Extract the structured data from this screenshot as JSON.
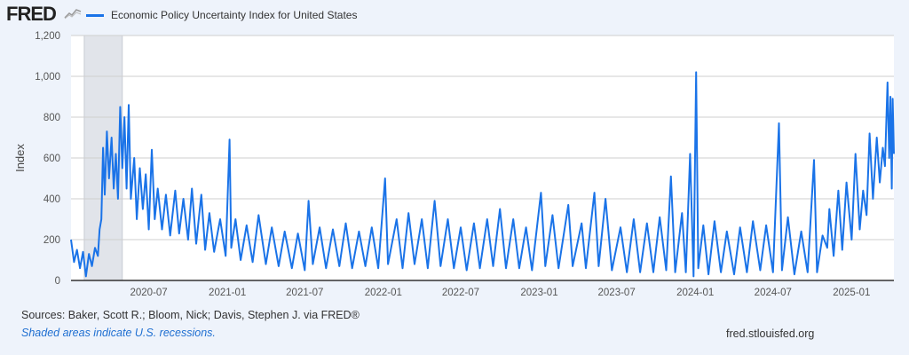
{
  "header": {
    "logo": "FRED",
    "legend_label": "Economic Policy Uncertainty Index for United States",
    "series_color": "#1a73e8"
  },
  "footer": {
    "sources": "Sources: Baker, Scott R.; Bloom, Nick; Davis, Stephen J. via FRED®",
    "note": "Shaded areas indicate U.S. recessions.",
    "site": "fred.stlouisfed.org"
  },
  "chart_data": {
    "type": "line",
    "title": "Economic Policy Uncertainty Index for United States",
    "xlabel": "",
    "ylabel": "Index",
    "ylim": [
      0,
      1200
    ],
    "xlim": [
      "2020-01-01",
      "2025-04-10"
    ],
    "yticks": [
      {
        "v": 0,
        "label": "0"
      },
      {
        "v": 200,
        "label": "200"
      },
      {
        "v": 400,
        "label": "400"
      },
      {
        "v": 600,
        "label": "600"
      },
      {
        "v": 800,
        "label": "800"
      },
      {
        "v": 1000,
        "label": "1,000"
      },
      {
        "v": 1200,
        "label": "1,200"
      }
    ],
    "xticks": [
      "2020-07",
      "2021-01",
      "2021-07",
      "2022-01",
      "2022-07",
      "2023-01",
      "2023-07",
      "2024-01",
      "2024-07",
      "2025-01"
    ],
    "recessions": [
      [
        "2020-02-01",
        "2020-04-30"
      ]
    ],
    "grid": true,
    "legend": "top-left",
    "series": [
      {
        "name": "Economic Policy Uncertainty Index for United States",
        "points": [
          [
            "2020-01-01",
            200
          ],
          [
            "2020-01-08",
            90
          ],
          [
            "2020-01-15",
            150
          ],
          [
            "2020-01-22",
            60
          ],
          [
            "2020-01-29",
            140
          ],
          [
            "2020-02-05",
            20
          ],
          [
            "2020-02-12",
            130
          ],
          [
            "2020-02-19",
            70
          ],
          [
            "2020-02-26",
            160
          ],
          [
            "2020-03-04",
            120
          ],
          [
            "2020-03-08",
            250
          ],
          [
            "2020-03-12",
            300
          ],
          [
            "2020-03-16",
            650
          ],
          [
            "2020-03-20",
            420
          ],
          [
            "2020-03-25",
            730
          ],
          [
            "2020-03-30",
            500
          ],
          [
            "2020-04-05",
            700
          ],
          [
            "2020-04-10",
            450
          ],
          [
            "2020-04-15",
            620
          ],
          [
            "2020-04-20",
            400
          ],
          [
            "2020-04-25",
            850
          ],
          [
            "2020-04-30",
            550
          ],
          [
            "2020-05-05",
            800
          ],
          [
            "2020-05-10",
            450
          ],
          [
            "2020-05-15",
            860
          ],
          [
            "2020-05-20",
            400
          ],
          [
            "2020-05-28",
            600
          ],
          [
            "2020-06-03",
            300
          ],
          [
            "2020-06-10",
            550
          ],
          [
            "2020-06-17",
            350
          ],
          [
            "2020-06-24",
            520
          ],
          [
            "2020-07-01",
            250
          ],
          [
            "2020-07-08",
            640
          ],
          [
            "2020-07-15",
            300
          ],
          [
            "2020-07-22",
            450
          ],
          [
            "2020-08-01",
            250
          ],
          [
            "2020-08-10",
            420
          ],
          [
            "2020-08-20",
            220
          ],
          [
            "2020-09-01",
            440
          ],
          [
            "2020-09-10",
            230
          ],
          [
            "2020-09-20",
            400
          ],
          [
            "2020-10-01",
            200
          ],
          [
            "2020-10-10",
            450
          ],
          [
            "2020-10-20",
            180
          ],
          [
            "2020-11-01",
            420
          ],
          [
            "2020-11-10",
            150
          ],
          [
            "2020-11-20",
            330
          ],
          [
            "2020-12-01",
            140
          ],
          [
            "2020-12-15",
            300
          ],
          [
            "2020-12-28",
            120
          ],
          [
            "2021-01-06",
            690
          ],
          [
            "2021-01-10",
            160
          ],
          [
            "2021-01-20",
            300
          ],
          [
            "2021-02-01",
            100
          ],
          [
            "2021-02-15",
            270
          ],
          [
            "2021-03-01",
            90
          ],
          [
            "2021-03-15",
            320
          ],
          [
            "2021-04-01",
            80
          ],
          [
            "2021-04-15",
            260
          ],
          [
            "2021-05-01",
            70
          ],
          [
            "2021-05-15",
            240
          ],
          [
            "2021-06-01",
            60
          ],
          [
            "2021-06-15",
            230
          ],
          [
            "2021-07-01",
            50
          ],
          [
            "2021-07-10",
            390
          ],
          [
            "2021-07-20",
            80
          ],
          [
            "2021-08-05",
            260
          ],
          [
            "2021-08-20",
            60
          ],
          [
            "2021-09-05",
            250
          ],
          [
            "2021-09-20",
            70
          ],
          [
            "2021-10-05",
            280
          ],
          [
            "2021-10-20",
            60
          ],
          [
            "2021-11-05",
            240
          ],
          [
            "2021-11-20",
            70
          ],
          [
            "2021-12-05",
            260
          ],
          [
            "2021-12-20",
            60
          ],
          [
            "2022-01-05",
            500
          ],
          [
            "2022-01-12",
            80
          ],
          [
            "2022-02-01",
            300
          ],
          [
            "2022-02-15",
            60
          ],
          [
            "2022-03-01",
            330
          ],
          [
            "2022-03-15",
            80
          ],
          [
            "2022-04-01",
            300
          ],
          [
            "2022-04-15",
            60
          ],
          [
            "2022-05-01",
            390
          ],
          [
            "2022-05-15",
            70
          ],
          [
            "2022-06-01",
            300
          ],
          [
            "2022-06-15",
            60
          ],
          [
            "2022-07-01",
            260
          ],
          [
            "2022-07-15",
            50
          ],
          [
            "2022-08-01",
            280
          ],
          [
            "2022-08-15",
            60
          ],
          [
            "2022-09-01",
            300
          ],
          [
            "2022-09-15",
            70
          ],
          [
            "2022-10-01",
            350
          ],
          [
            "2022-10-15",
            60
          ],
          [
            "2022-11-01",
            300
          ],
          [
            "2022-11-15",
            60
          ],
          [
            "2022-12-01",
            260
          ],
          [
            "2022-12-15",
            50
          ],
          [
            "2023-01-05",
            430
          ],
          [
            "2023-01-15",
            70
          ],
          [
            "2023-02-01",
            320
          ],
          [
            "2023-02-15",
            60
          ],
          [
            "2023-03-10",
            370
          ],
          [
            "2023-03-20",
            70
          ],
          [
            "2023-04-10",
            280
          ],
          [
            "2023-04-20",
            60
          ],
          [
            "2023-05-10",
            430
          ],
          [
            "2023-05-20",
            70
          ],
          [
            "2023-06-05",
            400
          ],
          [
            "2023-06-20",
            50
          ],
          [
            "2023-07-10",
            260
          ],
          [
            "2023-07-25",
            40
          ],
          [
            "2023-08-10",
            300
          ],
          [
            "2023-08-25",
            40
          ],
          [
            "2023-09-10",
            280
          ],
          [
            "2023-09-25",
            40
          ],
          [
            "2023-10-10",
            310
          ],
          [
            "2023-10-25",
            50
          ],
          [
            "2023-11-05",
            510
          ],
          [
            "2023-11-15",
            40
          ],
          [
            "2023-12-01",
            330
          ],
          [
            "2023-12-10",
            40
          ],
          [
            "2023-12-20",
            620
          ],
          [
            "2023-12-28",
            20
          ],
          [
            "2024-01-03",
            1020
          ],
          [
            "2024-01-08",
            60
          ],
          [
            "2024-01-20",
            270
          ],
          [
            "2024-02-01",
            30
          ],
          [
            "2024-02-15",
            290
          ],
          [
            "2024-03-01",
            40
          ],
          [
            "2024-03-15",
            240
          ],
          [
            "2024-04-01",
            30
          ],
          [
            "2024-04-15",
            260
          ],
          [
            "2024-05-01",
            40
          ],
          [
            "2024-05-15",
            290
          ],
          [
            "2024-06-01",
            50
          ],
          [
            "2024-06-15",
            270
          ],
          [
            "2024-07-01",
            40
          ],
          [
            "2024-07-15",
            770
          ],
          [
            "2024-07-22",
            50
          ],
          [
            "2024-08-05",
            310
          ],
          [
            "2024-08-20",
            30
          ],
          [
            "2024-09-05",
            240
          ],
          [
            "2024-09-20",
            40
          ],
          [
            "2024-10-05",
            590
          ],
          [
            "2024-10-12",
            40
          ],
          [
            "2024-10-25",
            220
          ],
          [
            "2024-11-05",
            160
          ],
          [
            "2024-11-10",
            350
          ],
          [
            "2024-11-20",
            120
          ],
          [
            "2024-12-01",
            440
          ],
          [
            "2024-12-10",
            150
          ],
          [
            "2024-12-20",
            480
          ],
          [
            "2025-01-01",
            200
          ],
          [
            "2025-01-10",
            620
          ],
          [
            "2025-01-20",
            250
          ],
          [
            "2025-01-28",
            440
          ],
          [
            "2025-02-05",
            320
          ],
          [
            "2025-02-12",
            720
          ],
          [
            "2025-02-20",
            400
          ],
          [
            "2025-03-01",
            700
          ],
          [
            "2025-03-08",
            480
          ],
          [
            "2025-03-15",
            650
          ],
          [
            "2025-03-20",
            560
          ],
          [
            "2025-03-26",
            970
          ],
          [
            "2025-03-30",
            600
          ],
          [
            "2025-04-02",
            900
          ],
          [
            "2025-04-05",
            450
          ],
          [
            "2025-04-07",
            890
          ],
          [
            "2025-04-10",
            620
          ]
        ]
      }
    ]
  }
}
